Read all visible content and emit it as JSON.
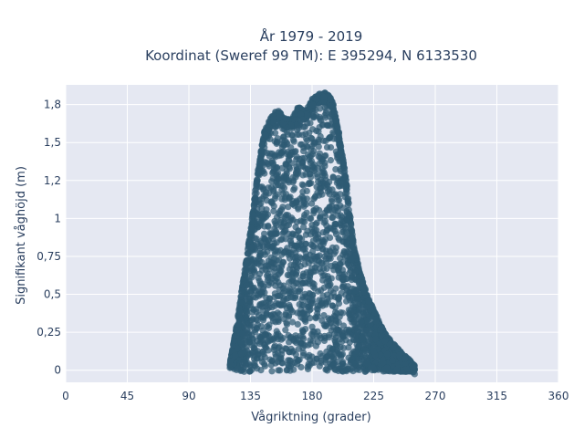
{
  "chart_data": {
    "type": "scatter",
    "title": "År 1979 - 2019",
    "subtitle": "Koordinat (Sweref 99 TM): E 395294, N 6133530",
    "xlabel": "Vågriktning (grader)",
    "ylabel": "Signifikant våghöjd (m)",
    "xlim": [
      0,
      360
    ],
    "ylim": [
      -0.08,
      1.88
    ],
    "xticks": [
      0,
      45,
      90,
      135,
      180,
      225,
      270,
      315,
      360
    ],
    "xtick_labels": [
      "0",
      "45",
      "90",
      "135",
      "180",
      "225",
      "270",
      "315",
      "360"
    ],
    "yticks": [
      0,
      0.25,
      0.5,
      0.75,
      1,
      1.25,
      1.5,
      1.75
    ],
    "ytick_labels": [
      "0",
      "0,25",
      "0,5",
      "0,75",
      "1",
      "1,2",
      "1,5",
      "1,8"
    ],
    "grid": true,
    "marker_color": "#2e5a73",
    "background_color": "#e5e8f2",
    "envelope": {
      "x": [
        120,
        125,
        130,
        135,
        140,
        145,
        150,
        155,
        160,
        165,
        170,
        175,
        180,
        185,
        190,
        195,
        200,
        205,
        210,
        215,
        220,
        225,
        230,
        235,
        240,
        245,
        250,
        255
      ],
      "y_max": [
        0.05,
        0.3,
        0.62,
        0.92,
        1.3,
        1.57,
        1.67,
        1.72,
        1.66,
        1.65,
        1.74,
        1.7,
        1.79,
        1.82,
        1.83,
        1.78,
        1.55,
        1.25,
        0.85,
        0.65,
        0.5,
        0.4,
        0.3,
        0.22,
        0.17,
        0.12,
        0.08,
        0.03
      ],
      "y_min": [
        0.02,
        0.0,
        -0.01,
        -0.01,
        -0.01,
        -0.01,
        -0.01,
        -0.01,
        -0.01,
        -0.01,
        -0.01,
        -0.01,
        -0.01,
        -0.01,
        -0.01,
        -0.01,
        -0.01,
        -0.01,
        -0.01,
        -0.01,
        -0.01,
        -0.01,
        -0.01,
        -0.01,
        -0.01,
        -0.01,
        -0.01,
        0.0
      ]
    }
  }
}
